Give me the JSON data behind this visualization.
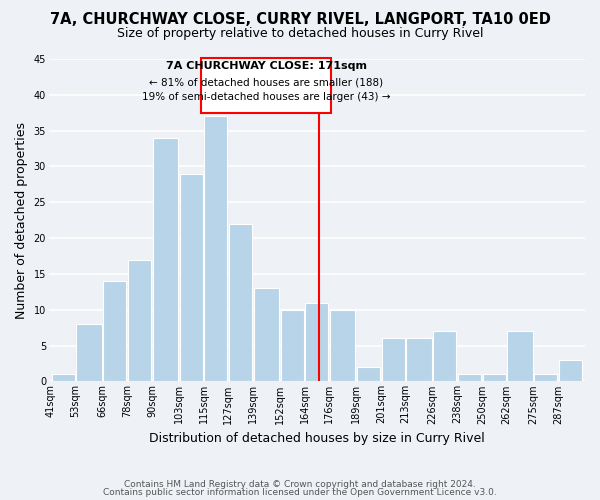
{
  "title1": "7A, CHURCHWAY CLOSE, CURRY RIVEL, LANGPORT, TA10 0ED",
  "title2": "Size of property relative to detached houses in Curry Rivel",
  "xlabel": "Distribution of detached houses by size in Curry Rivel",
  "ylabel": "Number of detached properties",
  "bar_heights": [
    1,
    8,
    14,
    17,
    34,
    29,
    37,
    22,
    13,
    10,
    11,
    10,
    2,
    6,
    6,
    7,
    1,
    1,
    7,
    1,
    3
  ],
  "bin_edges": [
    41,
    53,
    66,
    78,
    90,
    103,
    115,
    127,
    139,
    152,
    164,
    176,
    189,
    201,
    213,
    226,
    238,
    250,
    262,
    275,
    287,
    299
  ],
  "tick_labels": [
    "41sqm",
    "53sqm",
    "66sqm",
    "78sqm",
    "90sqm",
    "103sqm",
    "115sqm",
    "127sqm",
    "139sqm",
    "152sqm",
    "164sqm",
    "176sqm",
    "189sqm",
    "201sqm",
    "213sqm",
    "226sqm",
    "238sqm",
    "250sqm",
    "262sqm",
    "275sqm",
    "287sqm"
  ],
  "bar_color": "#b8d4e8",
  "bar_edge_color": "#ffffff",
  "background_color": "#eef2f7",
  "grid_color": "#ffffff",
  "red_line_x": 171,
  "ylim": [
    0,
    45
  ],
  "yticks": [
    0,
    5,
    10,
    15,
    20,
    25,
    30,
    35,
    40,
    45
  ],
  "annotation_title": "7A CHURCHWAY CLOSE: 171sqm",
  "annotation_line1": "← 81% of detached houses are smaller (188)",
  "annotation_line2": "19% of semi-detached houses are larger (43) →",
  "footer1": "Contains HM Land Registry data © Crown copyright and database right 2024.",
  "footer2": "Contains public sector information licensed under the Open Government Licence v3.0.",
  "title_fontsize": 10.5,
  "subtitle_fontsize": 9,
  "axis_label_fontsize": 9,
  "tick_fontsize": 7,
  "footer_fontsize": 6.5,
  "annot_fontsize_title": 8,
  "annot_fontsize_body": 7.5
}
